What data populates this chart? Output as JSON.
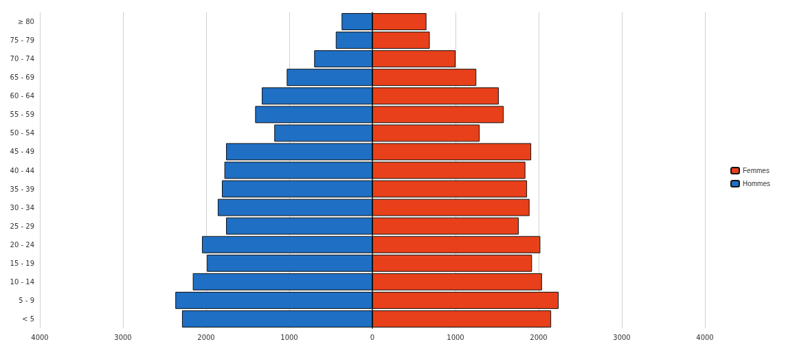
{
  "chart_data": {
    "type": "bar",
    "orientation": "horizontal",
    "stacked": true,
    "categories": [
      "≥ 80",
      "75 - 79",
      "70 - 74",
      "65 - 69",
      "60 - 64",
      "55 - 59",
      "50 - 54",
      "45 - 49",
      "40 - 44",
      "35 - 39",
      "30 - 34",
      "25 - 29",
      "20 - 24",
      "15 - 19",
      "10 - 14",
      "5 - 9",
      "< 5"
    ],
    "series": [
      {
        "name": "Femmes",
        "color": "#e8401a",
        "values": [
          650,
          690,
          1000,
          1250,
          1520,
          1580,
          1290,
          1910,
          1840,
          1860,
          1890,
          1760,
          2020,
          1920,
          2040,
          2240,
          2150
        ]
      },
      {
        "name": "Hommes",
        "color": "#1f6fc4",
        "values": [
          -370,
          -440,
          -700,
          -1030,
          -1330,
          -1410,
          -1180,
          -1760,
          -1780,
          -1810,
          -1860,
          -1760,
          -2050,
          -1990,
          -2160,
          -2370,
          -2290
        ]
      }
    ],
    "xlim": [
      -4000,
      4000
    ],
    "xticks": [
      {
        "value": -4000,
        "label": "4000"
      },
      {
        "value": -3000,
        "label": "3000"
      },
      {
        "value": -2000,
        "label": "2000"
      },
      {
        "value": -1000,
        "label": "1000"
      },
      0,
      1000,
      2000,
      3000,
      4000
    ],
    "grid": "x",
    "legend": "right"
  }
}
